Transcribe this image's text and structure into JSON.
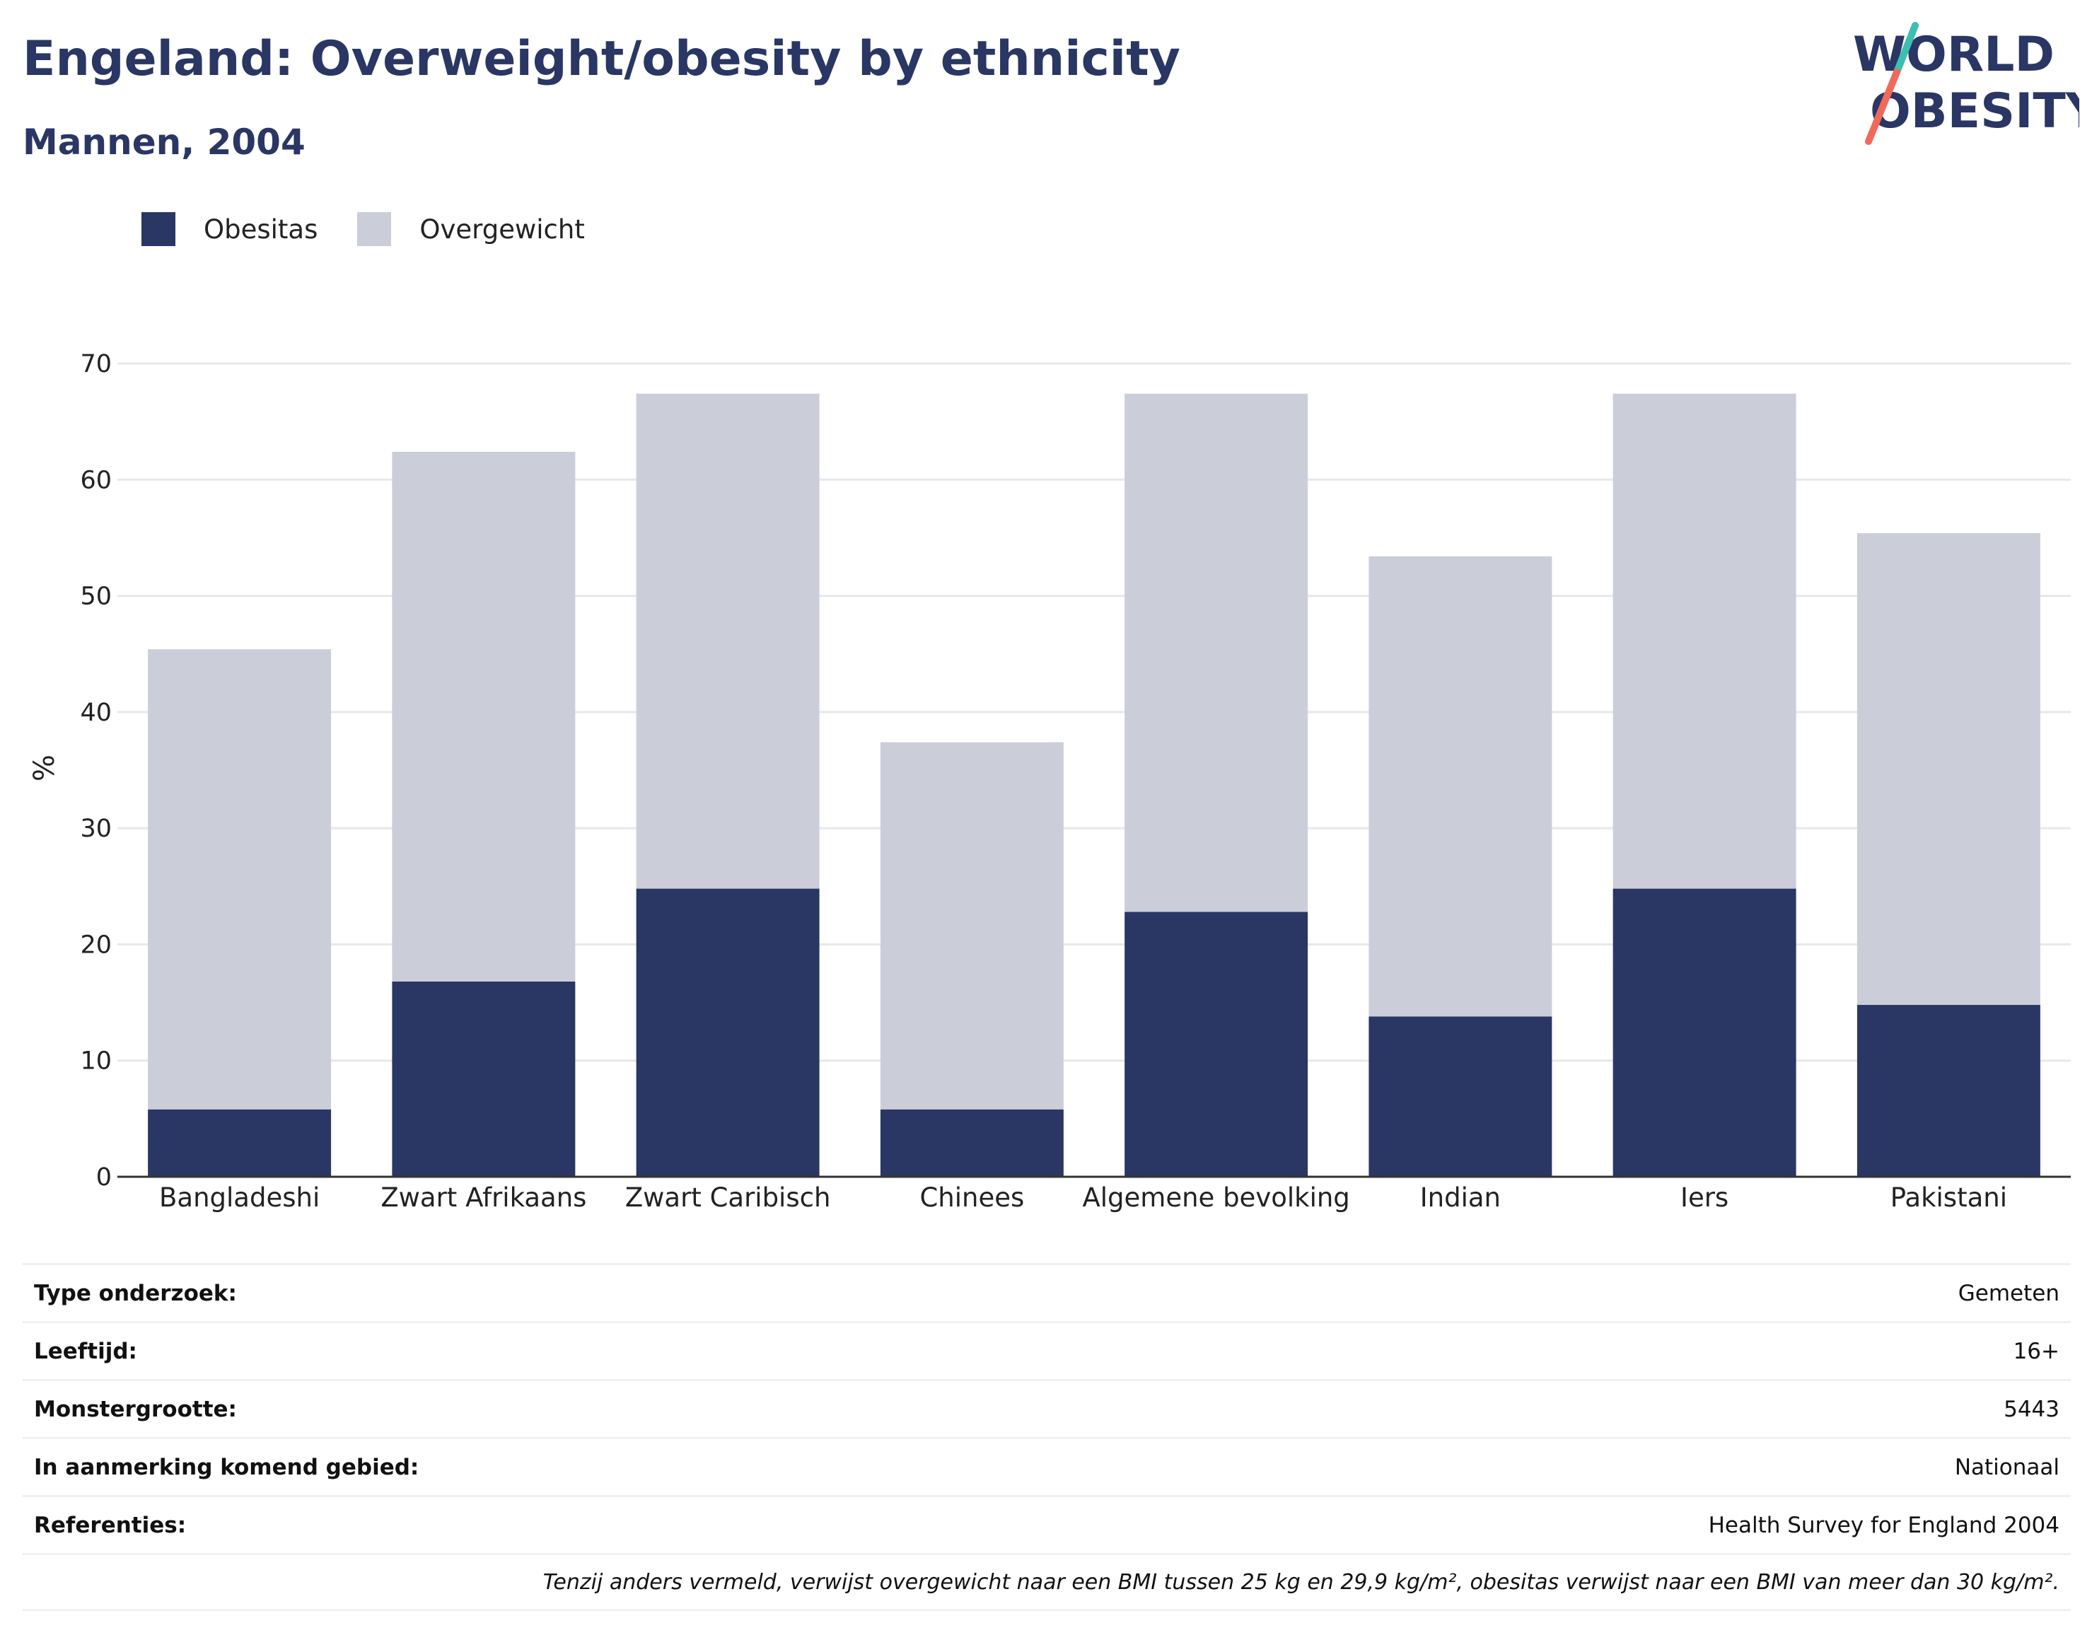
{
  "header": {
    "title": "Engeland: Overweight/obesity by ethnicity",
    "subtitle": "Mannen, 2004"
  },
  "logo": {
    "line1": "WORLD",
    "line2": "OBESITY",
    "accent_teal": "#3bbfb1",
    "accent_coral": "#ef6a5b"
  },
  "colors": {
    "obesitas": "#2a3663",
    "overgewicht": "#cbcdd8",
    "title": "#2a3663",
    "grid": "#e7e8ec",
    "axis": "#333333"
  },
  "chart_data": {
    "type": "bar",
    "stacked": true,
    "categories": [
      "Bangladeshi",
      "Zwart Afrikaans",
      "Zwart Caribisch",
      "Chinees",
      "Algemene bevolking",
      "Indian",
      "Iers",
      "Pakistani"
    ],
    "series": [
      {
        "name": "Obesitas",
        "values": [
          5.8,
          16.8,
          24.8,
          5.8,
          22.8,
          13.8,
          24.8,
          14.8
        ]
      },
      {
        "name": "Overgewicht",
        "values": [
          39.6,
          45.6,
          42.6,
          31.6,
          44.6,
          39.6,
          42.6,
          40.6
        ]
      }
    ],
    "totals": [
      45.4,
      62.4,
      67.4,
      37.4,
      67.4,
      53.4,
      67.4,
      55.4
    ],
    "ylabel": "%",
    "ylim": [
      0,
      70
    ],
    "yticks": [
      0,
      10,
      20,
      30,
      40,
      50,
      60,
      70
    ],
    "grid": true,
    "legend_position": "top-left"
  },
  "info": [
    {
      "key": "Type onderzoek:",
      "value": "Gemeten"
    },
    {
      "key": "Leeftijd:",
      "value": "16+"
    },
    {
      "key": "Monstergrootte:",
      "value": "5443"
    },
    {
      "key": "In aanmerking komend gebied:",
      "value": "Nationaal"
    },
    {
      "key": "Referenties:",
      "value": "Health Survey for England 2004"
    }
  ],
  "note": "Tenzij anders vermeld, verwijst overgewicht naar een BMI tussen 25 kg en 29,9 kg/m², obesitas verwijst naar een BMI van meer dan 30 kg/m²."
}
